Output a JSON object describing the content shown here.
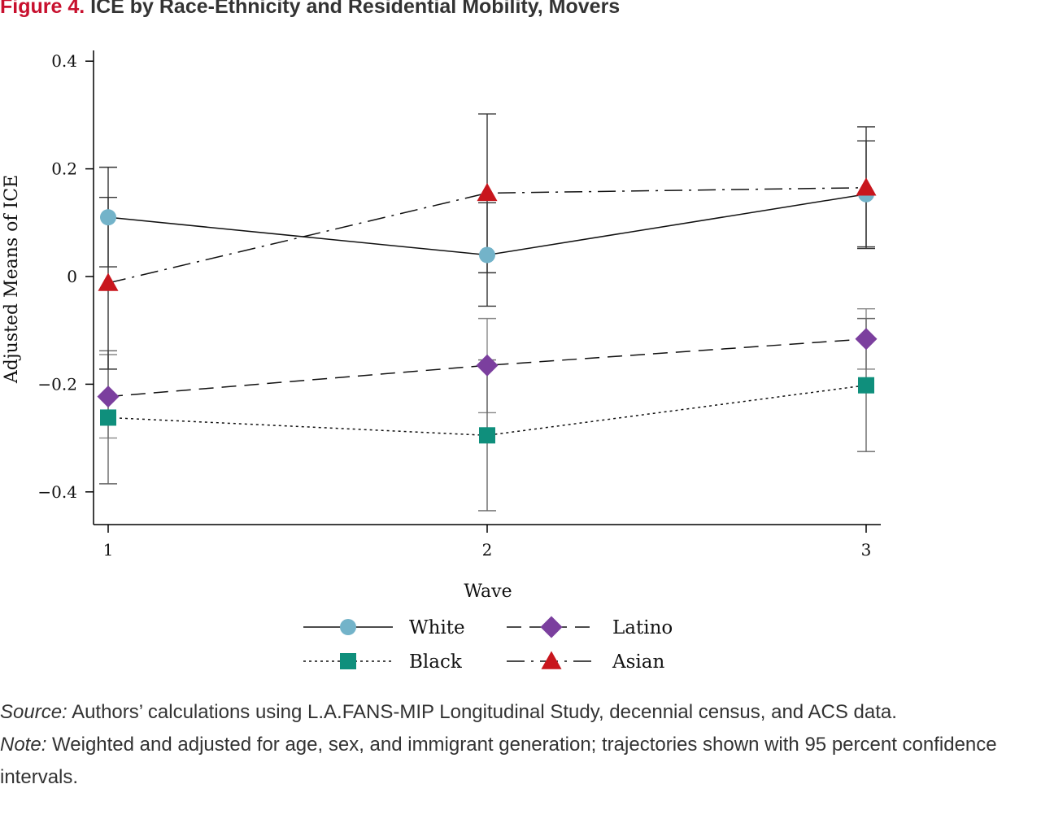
{
  "figure": {
    "label": "Figure 4.",
    "title": "ICE by Race-Ethnicity and Residential Mobility, Movers"
  },
  "chart_data": {
    "type": "line",
    "x": [
      1,
      2,
      3
    ],
    "xlabel": "Wave",
    "ylabel": "Adjusted Means of ICE",
    "xlim": [
      1,
      3
    ],
    "ylim": [
      -0.46,
      0.42
    ],
    "yticks": [
      0.4,
      0.2,
      0,
      -0.2,
      -0.4
    ],
    "ytick_labels": [
      "0.4",
      "0.2",
      "0",
      "−0.2",
      "−0.4"
    ],
    "xtick_labels": [
      "1",
      "2",
      "3"
    ],
    "grid": false,
    "legend_position": "bottom",
    "series": [
      {
        "name": "White",
        "color": "#73b3c9",
        "marker": "circle",
        "line_style": "solid",
        "values": [
          0.11,
          0.04,
          0.153
        ],
        "ci_low": [
          0.018,
          -0.055,
          0.055
        ],
        "ci_high": [
          0.203,
          0.137,
          0.252
        ]
      },
      {
        "name": "Latino",
        "color": "#7b3f9e",
        "marker": "diamond",
        "line_style": "dashed",
        "values": [
          -0.223,
          -0.165,
          -0.116
        ],
        "ci_low": [
          -0.3,
          -0.253,
          -0.172
        ],
        "ci_high": [
          -0.145,
          -0.078,
          -0.06
        ]
      },
      {
        "name": "Black",
        "color": "#0f8f7c",
        "marker": "square",
        "line_style": "dotted",
        "values": [
          -0.262,
          -0.295,
          -0.202
        ],
        "ci_low": [
          -0.385,
          -0.435,
          -0.325
        ],
        "ci_high": [
          -0.138,
          -0.155,
          -0.078
        ]
      },
      {
        "name": "Asian",
        "color": "#c8161d",
        "marker": "triangle",
        "line_style": "dash-dot",
        "values": [
          -0.012,
          0.155,
          0.165
        ],
        "ci_low": [
          -0.172,
          0.007,
          0.052
        ],
        "ci_high": [
          0.147,
          0.302,
          0.278
        ]
      }
    ]
  },
  "notes": {
    "source_label": "Source:",
    "source_text": " Authors’ calculations using L.A.FANS-MIP Longitudinal Study, decennial census, and ACS data.",
    "note_label": "Note:",
    "note_text": " Weighted and adjusted for age, sex, and immigrant generation; trajectories shown with 95 percent confidence intervals."
  }
}
